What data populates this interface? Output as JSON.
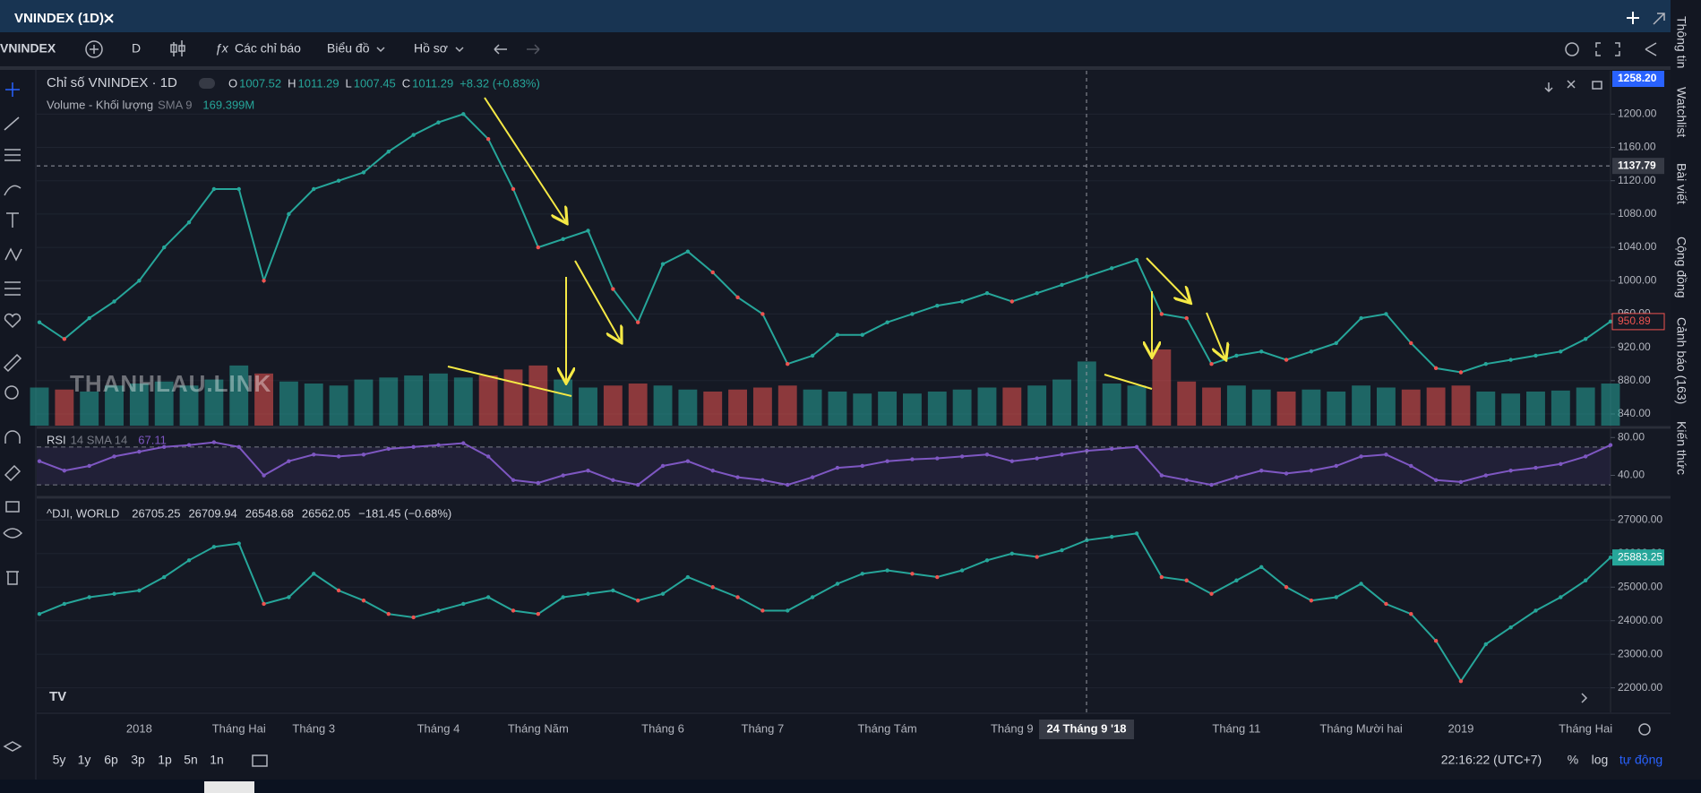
{
  "window": {
    "tab_title": "VNINDEX (1D)"
  },
  "toolbar": {
    "symbol": "VNINDEX",
    "interval": "D",
    "indicators": "Các chỉ báo",
    "chart_type": "Biểu đồ",
    "profile": "Hồ sơ"
  },
  "sidebar": [
    "Thông tin",
    "Watchlist",
    "Bài viết",
    "Cộng đồng",
    "Cảnh báo (163)",
    "Kiến thức"
  ],
  "watermark": "THANHLAU.LINK",
  "chart_data": [
    {
      "type": "line",
      "title": "Chỉ số VNINDEX · 1D",
      "ohlc": [
        {
          "label": "O",
          "value": 1007.52
        },
        {
          "label": "H",
          "value": 1011.29
        },
        {
          "label": "L",
          "value": 1007.45
        },
        {
          "label": "C",
          "value": 1011.29
        }
      ],
      "change": "+8.32 (+0.83%)",
      "color": "#26a69a",
      "up_color": "#26a69a",
      "down_color": "#ef5350",
      "values": [
        950,
        930,
        955,
        975,
        1000,
        1040,
        1070,
        1110,
        1110,
        1000,
        1080,
        1110,
        1120,
        1130,
        1155,
        1175,
        1190,
        1200,
        1170,
        1110,
        1040,
        1050,
        1060,
        990,
        950,
        1020,
        1035,
        1010,
        980,
        960,
        900,
        910,
        935,
        935,
        950,
        960,
        970,
        975,
        985,
        975,
        985,
        995,
        1005,
        1015,
        1025,
        960,
        955,
        900,
        910,
        915,
        905,
        915,
        925,
        955,
        960,
        925,
        895,
        890,
        900,
        905,
        910,
        915,
        930,
        951
      ],
      "volume": {
        "name": "Volume - Khối lượng",
        "sma_label": "SMA 9",
        "value_label": "169.399M",
        "values": [
          190,
          180,
          170,
          200,
          210,
          220,
          200,
          230,
          300,
          260,
          220,
          210,
          200,
          230,
          240,
          250,
          260,
          240,
          250,
          280,
          300,
          230,
          190,
          200,
          210,
          200,
          180,
          170,
          180,
          190,
          200,
          180,
          170,
          160,
          170,
          160,
          170,
          180,
          190,
          190,
          200,
          230,
          320,
          210,
          200,
          380,
          220,
          190,
          200,
          180,
          170,
          180,
          170,
          200,
          190,
          180,
          190,
          200,
          170,
          160,
          170,
          175,
          190,
          210
        ]
      },
      "ylim": [
        826,
        1252
      ],
      "yticks": [
        {
          "value": 840,
          "label": "840.00"
        },
        {
          "value": 880,
          "label": "880.00"
        },
        {
          "value": 920,
          "label": "920.00"
        },
        {
          "value": 960,
          "label": "960.00"
        },
        {
          "value": 1000,
          "label": "1000.00"
        },
        {
          "value": 1040,
          "label": "1040.00"
        },
        {
          "value": 1080,
          "label": "1080.00"
        },
        {
          "value": 1120,
          "label": "1120.00"
        },
        {
          "value": 1160,
          "label": "1160.00"
        },
        {
          "value": 1200,
          "label": "1200.00"
        }
      ],
      "grid": true,
      "top_label": "1258.20",
      "crosshair_price": 1137.79,
      "last_price": 950.89
    },
    {
      "type": "line",
      "title": "RSI",
      "params": "14 SMA 14",
      "current": 67.11,
      "color": "#7e57c2",
      "values": [
        55,
        45,
        50,
        60,
        65,
        70,
        72,
        75,
        70,
        40,
        55,
        62,
        60,
        62,
        68,
        70,
        72,
        74,
        60,
        35,
        32,
        40,
        45,
        35,
        30,
        50,
        55,
        45,
        38,
        35,
        30,
        38,
        48,
        50,
        55,
        57,
        58,
        60,
        62,
        55,
        58,
        62,
        66,
        68,
        70,
        40,
        35,
        30,
        38,
        45,
        42,
        45,
        50,
        60,
        62,
        50,
        35,
        33,
        40,
        45,
        48,
        52,
        60,
        72
      ],
      "bands": [
        30,
        70
      ],
      "ylim": [
        20.6,
        86.9
      ],
      "yticks": [
        {
          "value": 40,
          "label": "40.00"
        },
        {
          "value": 80,
          "label": "80.00"
        }
      ],
      "grid": false
    },
    {
      "type": "line",
      "title": "^DJI, WORLD",
      "ohlc": [
        26705.25,
        26709.94,
        26548.68,
        26562.05
      ],
      "change": "−181.45 (−0.68%)",
      "color": "#26a69a",
      "values": [
        24200,
        24500,
        24700,
        24800,
        24900,
        25300,
        25800,
        26200,
        26300,
        24500,
        24700,
        25400,
        24900,
        24600,
        24200,
        24100,
        24300,
        24500,
        24700,
        24300,
        24200,
        24700,
        24800,
        24900,
        24600,
        24800,
        25300,
        25000,
        24700,
        24300,
        24300,
        24700,
        25100,
        25400,
        25500,
        25400,
        25300,
        25500,
        25800,
        26000,
        25900,
        26100,
        26400,
        26500,
        26600,
        25300,
        25200,
        24800,
        25200,
        25600,
        25000,
        24600,
        24700,
        25100,
        24500,
        24200,
        23400,
        22200,
        23300,
        23800,
        24300,
        24700,
        25200,
        25883.25
      ],
      "categories": [
        null,
        null,
        null,
        null,
        "2018",
        null,
        null,
        null,
        "Tháng Hai",
        null,
        null,
        "Tháng 3",
        null,
        null,
        null,
        null,
        "Tháng 4",
        null,
        null,
        null,
        "Tháng Năm",
        null,
        null,
        null,
        null,
        "Tháng 6",
        null,
        null,
        null,
        "Tháng 7",
        null,
        null,
        null,
        null,
        "Tháng Tám",
        null,
        null,
        null,
        null,
        "Tháng 9",
        null,
        null,
        null,
        null,
        null,
        null,
        null,
        null,
        "Tháng 11",
        null,
        null,
        null,
        null,
        "Tháng Mười hai",
        null,
        null,
        null,
        "2019",
        null,
        null,
        null,
        null,
        "Tháng Hai",
        null
      ],
      "crosshair_label": "24 Tháng 9 '18",
      "ylim": [
        21323,
        27516
      ],
      "yticks": [
        {
          "value": 22000,
          "label": "22000.00"
        },
        {
          "value": 23000,
          "label": "23000.00"
        },
        {
          "value": 24000,
          "label": "24000.00"
        },
        {
          "value": 25000,
          "label": "25000.00"
        },
        {
          "value": 26000,
          "label": "26000.00"
        },
        {
          "value": 27000,
          "label": "27000.00"
        }
      ],
      "grid": true,
      "last_price": 25883.25
    }
  ],
  "bottom_bar": {
    "ranges": [
      "5y",
      "1y",
      "6p",
      "3p",
      "1p",
      "5n",
      "1n"
    ],
    "clock": "22:16:22 (UTC+7)",
    "scale_buttons": [
      "%",
      "log",
      "tự động"
    ]
  }
}
